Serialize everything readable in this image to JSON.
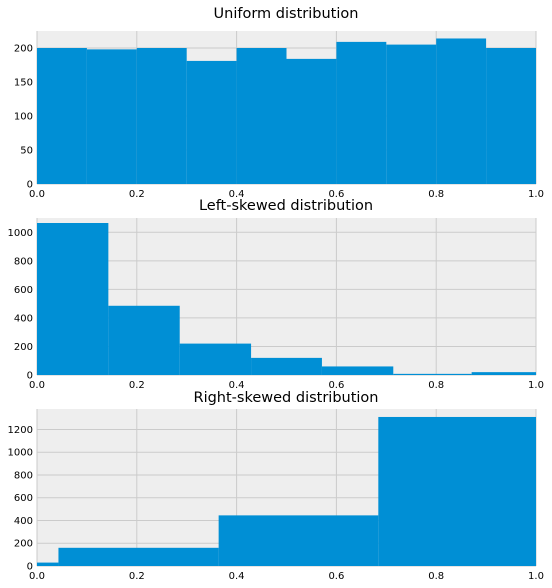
{
  "colors": {
    "bar": "#008fd5",
    "axes_background": "#eeeeee",
    "grid": "#cbcbcb",
    "figure_background": "#ffffff"
  },
  "chart_data": [
    {
      "type": "bar",
      "title": "Uniform distribution",
      "xlabel": "",
      "ylabel": "",
      "xlim": [
        0,
        1
      ],
      "ylim": [
        0,
        225
      ],
      "grid": true,
      "xticks": [
        "0.0",
        "0.2",
        "0.4",
        "0.6",
        "0.8",
        "1.0"
      ],
      "yticks": [
        "0",
        "50",
        "100",
        "150",
        "200"
      ],
      "bins": [
        {
          "x0": 0.0,
          "x1": 0.1,
          "value": 200
        },
        {
          "x0": 0.1,
          "x1": 0.2,
          "value": 198
        },
        {
          "x0": 0.2,
          "x1": 0.3,
          "value": 200
        },
        {
          "x0": 0.3,
          "x1": 0.4,
          "value": 181
        },
        {
          "x0": 0.4,
          "x1": 0.5,
          "value": 200
        },
        {
          "x0": 0.5,
          "x1": 0.6,
          "value": 184
        },
        {
          "x0": 0.6,
          "x1": 0.7,
          "value": 209
        },
        {
          "x0": 0.7,
          "x1": 0.8,
          "value": 205
        },
        {
          "x0": 0.8,
          "x1": 0.9,
          "value": 214
        },
        {
          "x0": 0.9,
          "x1": 1.0,
          "value": 200
        }
      ]
    },
    {
      "type": "bar",
      "title": "Left-skewed distribution",
      "xlabel": "",
      "ylabel": "",
      "xlim": [
        0,
        1
      ],
      "ylim": [
        0,
        1100
      ],
      "grid": true,
      "xticks": [
        "0.0",
        "0.2",
        "0.4",
        "0.6",
        "0.8",
        "1.0"
      ],
      "yticks": [
        "0",
        "200",
        "400",
        "600",
        "800",
        "1000"
      ],
      "bins": [
        {
          "x0": 0.0,
          "x1": 0.143,
          "value": 1065
        },
        {
          "x0": 0.143,
          "x1": 0.286,
          "value": 485
        },
        {
          "x0": 0.286,
          "x1": 0.429,
          "value": 220
        },
        {
          "x0": 0.429,
          "x1": 0.571,
          "value": 120
        },
        {
          "x0": 0.571,
          "x1": 0.714,
          "value": 60
        },
        {
          "x0": 0.714,
          "x1": 0.871,
          "value": 8
        },
        {
          "x0": 0.871,
          "x1": 1.0,
          "value": 20
        }
      ]
    },
    {
      "type": "bar",
      "title": "Right-skewed distribution",
      "xlabel": "",
      "ylabel": "",
      "xlim": [
        0,
        1
      ],
      "ylim": [
        0,
        1380
      ],
      "grid": true,
      "xticks": [
        "0.0",
        "0.2",
        "0.4",
        "0.6",
        "0.8",
        "1.0"
      ],
      "yticks": [
        "0",
        "200",
        "400",
        "600",
        "800",
        "1000",
        "1200"
      ],
      "bins": [
        {
          "x0": 0.0,
          "x1": 0.043,
          "value": 30
        },
        {
          "x0": 0.043,
          "x1": 0.364,
          "value": 160
        },
        {
          "x0": 0.364,
          "x1": 0.684,
          "value": 445
        },
        {
          "x0": 0.684,
          "x1": 1.0,
          "value": 1310
        }
      ]
    }
  ]
}
